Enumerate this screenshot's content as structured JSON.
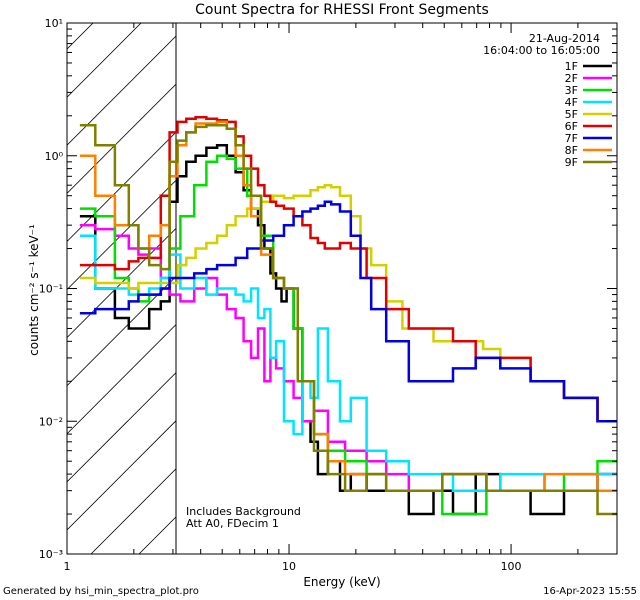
{
  "chart_data": {
    "type": "line",
    "title": "Count Spectra for RHESSI Front Segments",
    "xlabel": "Energy (keV)",
    "ylabel": "counts cm⁻² s⁻¹ keV⁻¹",
    "xscale": "log",
    "yscale": "log",
    "xlim": [
      1,
      300
    ],
    "ylim": [
      0.001,
      10
    ],
    "x_ticks": [
      {
        "value": 1,
        "label": "1"
      },
      {
        "value": 10,
        "label": "10"
      },
      {
        "value": 100,
        "label": "100"
      }
    ],
    "y_ticks": [
      {
        "value": 0.001,
        "label": "10⁻³"
      },
      {
        "value": 0.01,
        "label": "10⁻²"
      },
      {
        "value": 0.1,
        "label": "10⁻¹"
      },
      {
        "value": 1,
        "label": "10⁰"
      },
      {
        "value": 10,
        "label": "10¹"
      }
    ],
    "date": "21-Aug-2014",
    "time_range": "16:04:00 to 16:05:00",
    "annotations": [
      "Includes Background",
      "Att A0, FDecim 1"
    ],
    "excluded_region_max_kev": 3,
    "legend_position": "top-right",
    "series": [
      {
        "name": "1F",
        "color": "#000000",
        "x": [
          1.2,
          1.5,
          1.8,
          2.0,
          2.2,
          2.5,
          2.8,
          3.0,
          3.3,
          3.6,
          4.0,
          4.5,
          5.0,
          5.5,
          6.0,
          6.5,
          7.0,
          7.5,
          8.0,
          8.5,
          9.0,
          9.5,
          10,
          11,
          12,
          13,
          14,
          16,
          18,
          20,
          25,
          30,
          40,
          50,
          60,
          80,
          100,
          150,
          200,
          300
        ],
        "values": [
          0.35,
          0.1,
          0.06,
          0.05,
          0.05,
          0.07,
          0.08,
          0.45,
          0.7,
          0.9,
          1.0,
          1.15,
          1.2,
          1.0,
          0.75,
          0.55,
          0.4,
          0.3,
          0.2,
          0.13,
          0.1,
          0.08,
          0.1,
          0.05,
          0.01,
          0.007,
          0.004,
          0.005,
          0.003,
          0.004,
          0.003,
          0.003,
          0.002,
          0.003,
          0.002,
          0.004,
          0.003,
          0.002,
          0.003,
          0.004
        ]
      },
      {
        "name": "2F",
        "color": "#ff00ff",
        "x": [
          1.2,
          1.5,
          1.8,
          2.0,
          2.2,
          2.5,
          2.8,
          3.0,
          3.5,
          4.0,
          4.5,
          5.0,
          5.5,
          6.0,
          6.5,
          7.0,
          7.5,
          8.0,
          8.5,
          9.0,
          10,
          11,
          12,
          14,
          16,
          20,
          25,
          30,
          40,
          60,
          100,
          200,
          300
        ],
        "values": [
          0.3,
          0.28,
          0.25,
          0.2,
          0.18,
          0.2,
          0.12,
          0.09,
          0.08,
          0.1,
          0.12,
          0.09,
          0.07,
          0.06,
          0.04,
          0.03,
          0.05,
          0.02,
          0.03,
          0.025,
          0.02,
          0.015,
          0.01,
          0.012,
          0.007,
          0.006,
          0.005,
          0.004,
          0.003,
          0.004,
          0.003,
          0.003,
          0.004
        ]
      },
      {
        "name": "3F",
        "color": "#00e000",
        "x": [
          1.2,
          1.5,
          1.8,
          2.0,
          2.2,
          2.5,
          2.8,
          3.0,
          3.5,
          4.0,
          4.5,
          5.0,
          5.5,
          6.0,
          7.0,
          8.0,
          9.0,
          10,
          11,
          12,
          14,
          16,
          20,
          25,
          30,
          40,
          60,
          100,
          150,
          200,
          300
        ],
        "values": [
          0.4,
          0.35,
          0.12,
          0.1,
          0.08,
          0.09,
          0.1,
          0.2,
          0.35,
          0.6,
          0.9,
          1.0,
          0.95,
          0.8,
          0.5,
          0.25,
          0.12,
          0.1,
          0.05,
          0.02,
          0.008,
          0.006,
          0.005,
          0.004,
          0.003,
          0.003,
          0.002,
          0.003,
          0.003,
          0.004,
          0.005
        ]
      },
      {
        "name": "4F",
        "color": "#00e5ff",
        "x": [
          1.2,
          1.5,
          1.8,
          2.0,
          2.2,
          2.5,
          2.8,
          3.0,
          3.5,
          4.0,
          4.5,
          5.0,
          5.5,
          6.0,
          6.5,
          7.0,
          7.5,
          8.0,
          8.5,
          9.0,
          10,
          11,
          12,
          13,
          14,
          16,
          18,
          20,
          25,
          30,
          40,
          50,
          60,
          80,
          100,
          200,
          300
        ],
        "values": [
          0.25,
          0.1,
          0.1,
          0.09,
          0.09,
          0.1,
          0.12,
          0.18,
          0.1,
          0.12,
          0.09,
          0.1,
          0.1,
          0.09,
          0.08,
          0.1,
          0.06,
          0.07,
          0.03,
          0.04,
          0.01,
          0.008,
          0.02,
          0.015,
          0.05,
          0.02,
          0.01,
          0.015,
          0.006,
          0.005,
          0.004,
          0.004,
          0.003,
          0.003,
          0.004,
          0.003,
          0.004
        ]
      },
      {
        "name": "5F",
        "color": "#d4d000",
        "x": [
          1.2,
          1.5,
          1.8,
          2.0,
          2.2,
          2.5,
          2.8,
          3.0,
          3.3,
          3.6,
          4.0,
          4.5,
          5.0,
          5.5,
          6.0,
          7.0,
          8.0,
          9.0,
          10,
          11,
          12,
          13,
          14,
          15,
          16,
          18,
          20,
          22,
          25,
          30,
          35,
          40,
          50,
          60,
          70,
          80,
          100,
          150,
          200,
          300
        ],
        "values": [
          0.12,
          0.11,
          0.11,
          0.1,
          0.11,
          0.11,
          0.11,
          0.11,
          0.15,
          0.17,
          0.2,
          0.22,
          0.25,
          0.3,
          0.35,
          0.4,
          0.45,
          0.5,
          0.48,
          0.5,
          0.5,
          0.55,
          0.58,
          0.6,
          0.58,
          0.5,
          0.35,
          0.2,
          0.15,
          0.08,
          0.05,
          0.05,
          0.04,
          0.04,
          0.04,
          0.035,
          0.03,
          0.02,
          0.015,
          0.01
        ]
      },
      {
        "name": "6F",
        "color": "#e00000",
        "x": [
          1.2,
          1.5,
          1.8,
          2.0,
          2.2,
          2.5,
          2.8,
          3.0,
          3.3,
          3.6,
          4.0,
          4.5,
          5.0,
          5.5,
          6.0,
          6.5,
          7.0,
          7.5,
          8.0,
          8.5,
          9.0,
          10,
          11,
          12,
          13,
          14,
          15,
          16,
          18,
          20,
          25,
          30,
          40,
          50,
          60,
          80,
          100,
          150,
          200,
          300
        ],
        "values": [
          0.15,
          0.15,
          0.14,
          0.16,
          0.17,
          0.17,
          0.5,
          1.5,
          1.8,
          1.9,
          1.95,
          1.9,
          1.85,
          1.8,
          1.4,
          1.0,
          0.8,
          0.6,
          0.5,
          0.45,
          0.42,
          0.4,
          0.35,
          0.3,
          0.24,
          0.22,
          0.2,
          0.2,
          0.22,
          0.2,
          0.12,
          0.07,
          0.05,
          0.05,
          0.04,
          0.03,
          0.03,
          0.02,
          0.015,
          0.01
        ]
      },
      {
        "name": "7F",
        "color": "#0000e0",
        "x": [
          1.2,
          1.5,
          1.8,
          2.0,
          2.2,
          2.5,
          2.8,
          3.0,
          3.5,
          4.0,
          4.5,
          5.0,
          5.5,
          6.0,
          7.0,
          8.0,
          9.0,
          10,
          11,
          12,
          13,
          14,
          15,
          16,
          18,
          20,
          22,
          25,
          30,
          40,
          50,
          60,
          80,
          100,
          150,
          200,
          300
        ],
        "values": [
          0.065,
          0.07,
          0.07,
          0.08,
          0.09,
          0.09,
          0.1,
          0.12,
          0.12,
          0.13,
          0.14,
          0.15,
          0.15,
          0.17,
          0.2,
          0.23,
          0.25,
          0.3,
          0.35,
          0.38,
          0.4,
          0.42,
          0.45,
          0.43,
          0.38,
          0.25,
          0.12,
          0.07,
          0.04,
          0.02,
          0.02,
          0.025,
          0.03,
          0.025,
          0.02,
          0.015,
          0.01
        ]
      },
      {
        "name": "8F",
        "color": "#ff8000",
        "x": [
          1.2,
          1.5,
          1.8,
          2.0,
          2.2,
          2.5,
          2.8,
          3.0,
          3.3,
          3.6,
          4.0,
          4.5,
          5.0,
          5.5,
          6.0,
          6.5,
          7.0,
          8.0,
          9.0,
          10,
          12,
          14,
          16,
          20,
          25,
          30,
          40,
          60,
          100,
          200,
          300
        ],
        "values": [
          1.0,
          0.5,
          0.3,
          0.3,
          0.2,
          0.25,
          0.3,
          0.7,
          1.2,
          1.5,
          1.75,
          1.75,
          1.8,
          1.6,
          1.0,
          0.6,
          0.35,
          0.18,
          0.12,
          0.1,
          0.02,
          0.008,
          0.005,
          0.004,
          0.004,
          0.003,
          0.003,
          0.004,
          0.003,
          0.004,
          0.003
        ]
      },
      {
        "name": "9F",
        "color": "#808000",
        "x": [
          1.2,
          1.5,
          1.8,
          2.0,
          2.2,
          2.5,
          2.8,
          3.0,
          3.3,
          3.6,
          4.0,
          4.5,
          5.0,
          5.5,
          6.0,
          6.5,
          7.0,
          8.0,
          9.0,
          10,
          12,
          14,
          16,
          20,
          25,
          30,
          40,
          60,
          100,
          200,
          300
        ],
        "values": [
          1.7,
          1.2,
          0.6,
          0.3,
          0.2,
          0.15,
          0.14,
          0.9,
          1.3,
          1.5,
          1.65,
          1.7,
          1.7,
          1.6,
          1.2,
          0.8,
          0.5,
          0.2,
          0.12,
          0.1,
          0.02,
          0.006,
          0.004,
          0.003,
          0.004,
          0.003,
          0.003,
          0.004,
          0.003,
          0.003,
          0.002
        ]
      }
    ]
  },
  "footer": {
    "generated_by": "Generated by hsi_min_spectra_plot.pro",
    "timestamp": "16-Apr-2023 15:55"
  }
}
